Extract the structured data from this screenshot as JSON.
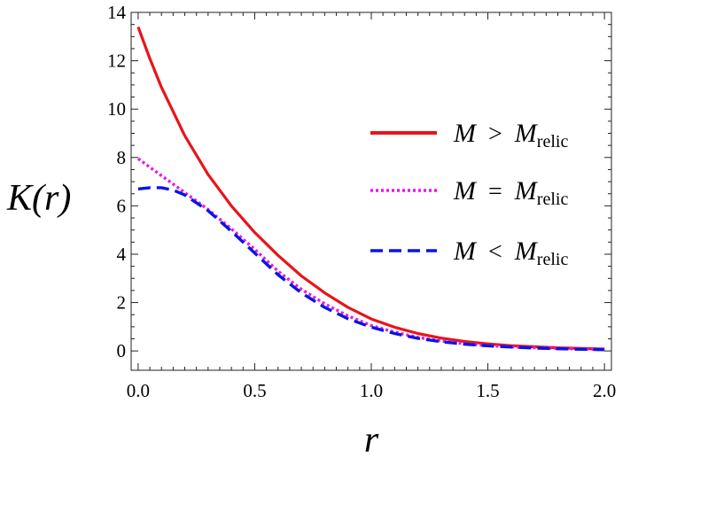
{
  "chart_data": {
    "type": "line",
    "title": "",
    "xlabel": "r",
    "ylabel": "K(r)",
    "xlim": [
      -0.03,
      2.03
    ],
    "ylim": [
      -0.8,
      14
    ],
    "x_ticks": [
      0.0,
      0.5,
      1.0,
      1.5,
      2.0
    ],
    "x_tick_labels": [
      "0.0",
      "0.5",
      "1.0",
      "1.5",
      "2.0"
    ],
    "y_ticks": [
      0,
      2,
      4,
      6,
      8,
      10,
      12,
      14
    ],
    "y_tick_labels": [
      "0",
      "2",
      "4",
      "6",
      "8",
      "10",
      "12",
      "14"
    ],
    "legend_position": "right",
    "grid": false,
    "series": [
      {
        "name": "M > M_relic",
        "legend_var": "M",
        "legend_op": ">",
        "legend_rhs": "M",
        "legend_sub": "relic",
        "color": "#e8141a",
        "style": "solid",
        "x": [
          0.0,
          0.05,
          0.1,
          0.15,
          0.2,
          0.3,
          0.4,
          0.5,
          0.6,
          0.7,
          0.8,
          0.9,
          1.0,
          1.1,
          1.2,
          1.3,
          1.4,
          1.5,
          1.6,
          1.7,
          1.8,
          1.9,
          2.0
        ],
        "y": [
          13.4,
          12.1,
          10.9,
          9.9,
          8.9,
          7.3,
          6.0,
          4.9,
          3.95,
          3.1,
          2.4,
          1.8,
          1.32,
          0.98,
          0.72,
          0.53,
          0.39,
          0.29,
          0.22,
          0.17,
          0.13,
          0.1,
          0.08
        ]
      },
      {
        "name": "M = M_relic",
        "legend_var": "M",
        "legend_op": "=",
        "legend_rhs": "M",
        "legend_sub": "relic",
        "color": "#e619e6",
        "style": "dotted",
        "x": [
          0.0,
          0.05,
          0.1,
          0.15,
          0.2,
          0.3,
          0.4,
          0.5,
          0.6,
          0.7,
          0.8,
          0.9,
          1.0,
          1.1,
          1.2,
          1.3,
          1.4,
          1.5,
          1.6,
          1.7,
          1.8,
          1.9,
          2.0
        ],
        "y": [
          7.95,
          7.6,
          7.25,
          6.9,
          6.55,
          5.85,
          5.05,
          4.2,
          3.3,
          2.55,
          1.95,
          1.45,
          1.05,
          0.78,
          0.56,
          0.41,
          0.3,
          0.22,
          0.17,
          0.13,
          0.1,
          0.08,
          0.06
        ]
      },
      {
        "name": "M < M_relic",
        "legend_var": "M",
        "legend_op": "<",
        "legend_rhs": "M",
        "legend_sub": "relic",
        "color": "#0a14e6",
        "style": "dashed",
        "x": [
          0.0,
          0.05,
          0.1,
          0.15,
          0.2,
          0.3,
          0.4,
          0.5,
          0.6,
          0.7,
          0.8,
          0.9,
          1.0,
          1.1,
          1.2,
          1.3,
          1.4,
          1.5,
          1.6,
          1.7,
          1.8,
          1.9,
          2.0
        ],
        "y": [
          6.7,
          6.75,
          6.75,
          6.65,
          6.45,
          5.8,
          4.95,
          4.05,
          3.15,
          2.4,
          1.8,
          1.33,
          0.98,
          0.72,
          0.52,
          0.38,
          0.28,
          0.21,
          0.16,
          0.12,
          0.09,
          0.07,
          0.05
        ]
      }
    ]
  }
}
